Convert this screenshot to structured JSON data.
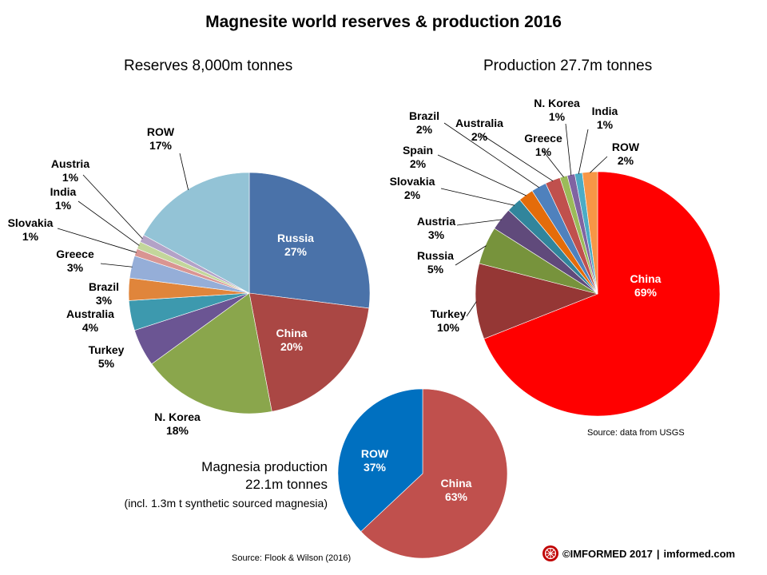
{
  "title": "Magnesite world reserves & production 2016",
  "reserves_title": "Reserves 8,000m tonnes",
  "production_title": "Production 27.7m tonnes",
  "magnesia_title_line1": "Magnesia production",
  "magnesia_title_line2": "22.1m tonnes",
  "magnesia_note": "(incl. 1.3m t synthetic sourced magnesia)",
  "source_usgs": "Source: data from USGS",
  "source_flook": "Source: Flook & Wilson (2016)",
  "footer": {
    "brand": "©IMFORMED 2017",
    "separator": "|",
    "site": "imformed.com",
    "logo_icon": "imformed-logo-icon"
  },
  "chart_data": [
    {
      "type": "pie",
      "title": "Reserves 8,000m tonnes",
      "slices": [
        {
          "label": "Russia",
          "value": 27,
          "display": "27%",
          "color": "#4a72a9"
        },
        {
          "label": "China",
          "value": 20,
          "display": "20%",
          "color": "#aa4744"
        },
        {
          "label": "N. Korea",
          "value": 18,
          "display": "18%",
          "color": "#8aa64c"
        },
        {
          "label": "Turkey",
          "value": 5,
          "display": "5%",
          "color": "#6b5593"
        },
        {
          "label": "Australia",
          "value": 4,
          "display": "4%",
          "color": "#3d99ae"
        },
        {
          "label": "Brazil",
          "value": 3,
          "display": "3%",
          "color": "#e0853b"
        },
        {
          "label": "Greece",
          "value": 3,
          "display": "3%",
          "color": "#95aed8"
        },
        {
          "label": "Slovakia",
          "value": 1,
          "display": "1%",
          "color": "#d99592"
        },
        {
          "label": "India",
          "value": 1,
          "display": "1%",
          "color": "#c3d69b"
        },
        {
          "label": "Austria",
          "value": 1,
          "display": "1%",
          "color": "#b3a2c7"
        },
        {
          "label": "ROW",
          "value": 17,
          "display": "17%",
          "color": "#93c3d6"
        }
      ]
    },
    {
      "type": "pie",
      "title": "Production 27.7m tonnes",
      "slices": [
        {
          "label": "China",
          "value": 69,
          "display": "69%",
          "color": "#ff0000"
        },
        {
          "label": "Turkey",
          "value": 10,
          "display": "10%",
          "color": "#953735"
        },
        {
          "label": "Russia",
          "value": 5,
          "display": "5%",
          "color": "#77933c"
        },
        {
          "label": "Austria",
          "value": 3,
          "display": "3%",
          "color": "#604a7b"
        },
        {
          "label": "Slovakia",
          "value": 2,
          "display": "2%",
          "color": "#31859c"
        },
        {
          "label": "Spain",
          "value": 2,
          "display": "2%",
          "color": "#e46c0a"
        },
        {
          "label": "Brazil",
          "value": 2,
          "display": "2%",
          "color": "#4f81bd"
        },
        {
          "label": "Australia",
          "value": 2,
          "display": "2%",
          "color": "#c0504d"
        },
        {
          "label": "Greece",
          "value": 1,
          "display": "1%",
          "color": "#9bbb59"
        },
        {
          "label": "N. Korea",
          "value": 1,
          "display": "1%",
          "color": "#8064a2"
        },
        {
          "label": "India",
          "value": 1,
          "display": "1%",
          "color": "#4bacc6"
        },
        {
          "label": "ROW",
          "value": 2,
          "display": "2%",
          "color": "#f79646"
        }
      ]
    },
    {
      "type": "pie",
      "title": "Magnesia production 22.1m tonnes",
      "slices": [
        {
          "label": "China",
          "value": 63,
          "display": "63%",
          "color": "#c0504d"
        },
        {
          "label": "ROW",
          "value": 37,
          "display": "37%",
          "color": "#0070c0"
        }
      ]
    }
  ]
}
